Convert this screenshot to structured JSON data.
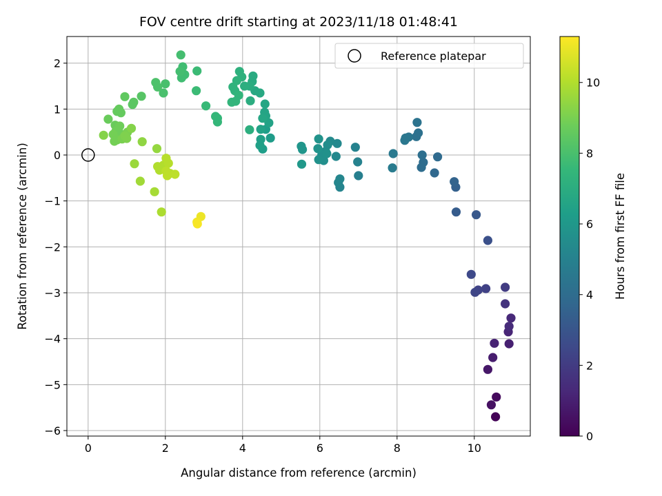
{
  "chart_data": {
    "type": "scatter",
    "title": "FOV centre drift starting at 2023/11/18 01:48:41",
    "xlabel": "Angular distance from reference (arcmin)",
    "ylabel": "Rotation from reference (arcmin)",
    "xlim": [
      -0.55,
      11.45
    ],
    "ylim": [
      -6.12,
      2.58
    ],
    "xticks": [
      0,
      2,
      4,
      6,
      8,
      10
    ],
    "yticks": [
      -6,
      -5,
      -4,
      -3,
      -2,
      -1,
      0,
      1,
      2
    ],
    "grid": true,
    "legend": {
      "placement": "top-right",
      "entries": [
        "Reference platepar"
      ]
    },
    "reference": {
      "x": 0,
      "y": 0,
      "label": "Reference platepar"
    },
    "colorbar": {
      "label": "Hours from first FF file",
      "colormap": "viridis",
      "min": 0,
      "max": 11.3,
      "ticks": [
        0,
        2,
        4,
        6,
        8,
        10
      ]
    },
    "points": [
      {
        "x": 10.55,
        "y": -5.7,
        "h": 0.1
      },
      {
        "x": 10.57,
        "y": -5.27,
        "h": 0.3
      },
      {
        "x": 10.44,
        "y": -5.44,
        "h": 0.5
      },
      {
        "x": 10.35,
        "y": -4.67,
        "h": 0.7
      },
      {
        "x": 10.48,
        "y": -4.41,
        "h": 0.9
      },
      {
        "x": 10.52,
        "y": -4.1,
        "h": 1.1
      },
      {
        "x": 10.9,
        "y": -4.11,
        "h": 1.0
      },
      {
        "x": 10.88,
        "y": -3.85,
        "h": 1.2
      },
      {
        "x": 10.9,
        "y": -3.73,
        "h": 1.4
      },
      {
        "x": 10.95,
        "y": -3.55,
        "h": 1.3
      },
      {
        "x": 10.8,
        "y": -3.24,
        "h": 1.7
      },
      {
        "x": 10.8,
        "y": -2.88,
        "h": 2.0
      },
      {
        "x": 10.3,
        "y": -2.91,
        "h": 2.2
      },
      {
        "x": 10.1,
        "y": -2.94,
        "h": 2.3
      },
      {
        "x": 10.02,
        "y": -2.99,
        "h": 2.4
      },
      {
        "x": 9.92,
        "y": -2.6,
        "h": 2.5
      },
      {
        "x": 10.35,
        "y": -1.86,
        "h": 2.8
      },
      {
        "x": 10.05,
        "y": -1.3,
        "h": 3.1
      },
      {
        "x": 9.53,
        "y": -1.24,
        "h": 3.3
      },
      {
        "x": 9.52,
        "y": -0.7,
        "h": 3.5
      },
      {
        "x": 9.48,
        "y": -0.58,
        "h": 3.6
      },
      {
        "x": 8.97,
        "y": -0.39,
        "h": 3.8
      },
      {
        "x": 9.05,
        "y": -0.04,
        "h": 3.9
      },
      {
        "x": 8.68,
        "y": -0.16,
        "h": 4.0
      },
      {
        "x": 8.63,
        "y": -0.27,
        "h": 4.0
      },
      {
        "x": 8.65,
        "y": 0.0,
        "h": 4.1
      },
      {
        "x": 8.55,
        "y": 0.48,
        "h": 4.2
      },
      {
        "x": 8.5,
        "y": 0.4,
        "h": 4.2
      },
      {
        "x": 8.52,
        "y": 0.71,
        "h": 4.3
      },
      {
        "x": 8.3,
        "y": 0.39,
        "h": 4.4
      },
      {
        "x": 8.22,
        "y": 0.37,
        "h": 4.5
      },
      {
        "x": 8.2,
        "y": 0.32,
        "h": 4.5
      },
      {
        "x": 7.9,
        "y": 0.03,
        "h": 4.6
      },
      {
        "x": 7.88,
        "y": -0.28,
        "h": 4.7
      },
      {
        "x": 7.0,
        "y": -0.45,
        "h": 4.9
      },
      {
        "x": 6.98,
        "y": -0.15,
        "h": 5.0
      },
      {
        "x": 6.92,
        "y": 0.17,
        "h": 5.0
      },
      {
        "x": 6.52,
        "y": -0.7,
        "h": 5.1
      },
      {
        "x": 6.48,
        "y": -0.6,
        "h": 5.2
      },
      {
        "x": 6.52,
        "y": -0.52,
        "h": 5.2
      },
      {
        "x": 6.42,
        "y": -0.03,
        "h": 5.3
      },
      {
        "x": 6.45,
        "y": 0.25,
        "h": 5.3
      },
      {
        "x": 6.27,
        "y": 0.3,
        "h": 5.4
      },
      {
        "x": 6.2,
        "y": 0.22,
        "h": 5.5
      },
      {
        "x": 6.15,
        "y": 0.08,
        "h": 5.5
      },
      {
        "x": 6.05,
        "y": 0.0,
        "h": 5.6
      },
      {
        "x": 6.1,
        "y": -0.12,
        "h": 5.6
      },
      {
        "x": 5.97,
        "y": -0.1,
        "h": 5.7
      },
      {
        "x": 6.18,
        "y": 0.03,
        "h": 5.7
      },
      {
        "x": 5.95,
        "y": 0.14,
        "h": 5.8
      },
      {
        "x": 5.97,
        "y": 0.35,
        "h": 5.8
      },
      {
        "x": 5.52,
        "y": 0.19,
        "h": 5.9
      },
      {
        "x": 5.55,
        "y": 0.12,
        "h": 5.9
      },
      {
        "x": 5.53,
        "y": -0.2,
        "h": 6.0
      },
      {
        "x": 4.72,
        "y": 0.37,
        "h": 6.2
      },
      {
        "x": 4.6,
        "y": 0.56,
        "h": 6.3
      },
      {
        "x": 4.52,
        "y": 0.13,
        "h": 6.3
      },
      {
        "x": 4.45,
        "y": 0.21,
        "h": 6.4
      },
      {
        "x": 4.47,
        "y": 0.34,
        "h": 6.4
      },
      {
        "x": 4.47,
        "y": 0.56,
        "h": 6.5
      },
      {
        "x": 4.68,
        "y": 0.7,
        "h": 6.5
      },
      {
        "x": 4.6,
        "y": 0.85,
        "h": 6.6
      },
      {
        "x": 4.57,
        "y": 0.93,
        "h": 6.6
      },
      {
        "x": 4.52,
        "y": 0.8,
        "h": 6.7
      },
      {
        "x": 4.58,
        "y": 1.11,
        "h": 6.7
      },
      {
        "x": 4.45,
        "y": 1.35,
        "h": 6.8
      },
      {
        "x": 4.32,
        "y": 1.4,
        "h": 6.8
      },
      {
        "x": 4.25,
        "y": 1.6,
        "h": 6.9
      },
      {
        "x": 4.27,
        "y": 1.72,
        "h": 6.9
      },
      {
        "x": 4.18,
        "y": 1.5,
        "h": 7.0
      },
      {
        "x": 4.2,
        "y": 1.18,
        "h": 7.0
      },
      {
        "x": 4.18,
        "y": 0.55,
        "h": 7.1
      },
      {
        "x": 4.05,
        "y": 1.5,
        "h": 7.1
      },
      {
        "x": 3.98,
        "y": 1.7,
        "h": 7.2
      },
      {
        "x": 3.92,
        "y": 1.82,
        "h": 7.2
      },
      {
        "x": 3.85,
        "y": 1.62,
        "h": 7.3
      },
      {
        "x": 3.8,
        "y": 1.4,
        "h": 7.3
      },
      {
        "x": 3.75,
        "y": 1.48,
        "h": 7.3
      },
      {
        "x": 3.9,
        "y": 1.3,
        "h": 7.4
      },
      {
        "x": 3.82,
        "y": 1.17,
        "h": 7.4
      },
      {
        "x": 3.72,
        "y": 1.15,
        "h": 7.4
      },
      {
        "x": 3.35,
        "y": 0.72,
        "h": 7.5
      },
      {
        "x": 3.35,
        "y": 0.8,
        "h": 7.5
      },
      {
        "x": 3.3,
        "y": 0.84,
        "h": 7.5
      },
      {
        "x": 3.05,
        "y": 1.07,
        "h": 7.6
      },
      {
        "x": 2.8,
        "y": 1.4,
        "h": 7.7
      },
      {
        "x": 2.82,
        "y": 1.83,
        "h": 7.7
      },
      {
        "x": 2.5,
        "y": 1.75,
        "h": 7.8
      },
      {
        "x": 2.42,
        "y": 1.68,
        "h": 7.8
      },
      {
        "x": 2.45,
        "y": 1.92,
        "h": 7.8
      },
      {
        "x": 2.38,
        "y": 1.82,
        "h": 7.9
      },
      {
        "x": 2.4,
        "y": 2.18,
        "h": 7.9
      },
      {
        "x": 2.0,
        "y": 1.55,
        "h": 8.0
      },
      {
        "x": 1.95,
        "y": 1.35,
        "h": 8.0
      },
      {
        "x": 1.8,
        "y": 1.48,
        "h": 8.1
      },
      {
        "x": 1.75,
        "y": 1.58,
        "h": 8.1
      },
      {
        "x": 1.38,
        "y": 1.28,
        "h": 8.3
      },
      {
        "x": 1.18,
        "y": 1.15,
        "h": 8.4
      },
      {
        "x": 1.15,
        "y": 1.1,
        "h": 8.4
      },
      {
        "x": 0.95,
        "y": 1.27,
        "h": 8.5
      },
      {
        "x": 0.85,
        "y": 0.92,
        "h": 8.6
      },
      {
        "x": 0.8,
        "y": 1.0,
        "h": 8.6
      },
      {
        "x": 0.75,
        "y": 0.95,
        "h": 8.6
      },
      {
        "x": 0.52,
        "y": 0.78,
        "h": 8.7
      },
      {
        "x": 0.7,
        "y": 0.65,
        "h": 8.7
      },
      {
        "x": 0.82,
        "y": 0.63,
        "h": 8.8
      },
      {
        "x": 0.8,
        "y": 0.5,
        "h": 8.8
      },
      {
        "x": 0.72,
        "y": 0.52,
        "h": 8.8
      },
      {
        "x": 0.65,
        "y": 0.45,
        "h": 8.9
      },
      {
        "x": 0.75,
        "y": 0.33,
        "h": 8.9
      },
      {
        "x": 0.68,
        "y": 0.3,
        "h": 8.9
      },
      {
        "x": 0.88,
        "y": 0.35,
        "h": 9.0
      },
      {
        "x": 1.02,
        "y": 0.5,
        "h": 9.0
      },
      {
        "x": 0.95,
        "y": 0.42,
        "h": 9.1
      },
      {
        "x": 1.0,
        "y": 0.36,
        "h": 9.1
      },
      {
        "x": 1.12,
        "y": 0.58,
        "h": 9.2
      },
      {
        "x": 0.4,
        "y": 0.43,
        "h": 9.2
      },
      {
        "x": 1.4,
        "y": 0.29,
        "h": 9.4
      },
      {
        "x": 1.78,
        "y": 0.14,
        "h": 9.5
      },
      {
        "x": 1.2,
        "y": -0.19,
        "h": 9.6
      },
      {
        "x": 1.35,
        "y": -0.57,
        "h": 9.7
      },
      {
        "x": 1.72,
        "y": -0.8,
        "h": 9.8
      },
      {
        "x": 1.9,
        "y": -1.24,
        "h": 9.9
      },
      {
        "x": 1.8,
        "y": -0.25,
        "h": 10.0
      },
      {
        "x": 1.85,
        "y": -0.33,
        "h": 10.0
      },
      {
        "x": 1.95,
        "y": -0.22,
        "h": 10.0
      },
      {
        "x": 2.02,
        "y": -0.07,
        "h": 10.1
      },
      {
        "x": 2.08,
        "y": -0.18,
        "h": 10.1
      },
      {
        "x": 2.12,
        "y": -0.4,
        "h": 10.1
      },
      {
        "x": 2.05,
        "y": -0.45,
        "h": 10.2
      },
      {
        "x": 2.02,
        "y": -0.35,
        "h": 10.2
      },
      {
        "x": 2.25,
        "y": -0.42,
        "h": 10.2
      },
      {
        "x": 2.92,
        "y": -1.34,
        "h": 11.0
      },
      {
        "x": 2.82,
        "y": -1.46,
        "h": 11.1
      },
      {
        "x": 2.83,
        "y": -1.5,
        "h": 11.2
      }
    ]
  }
}
